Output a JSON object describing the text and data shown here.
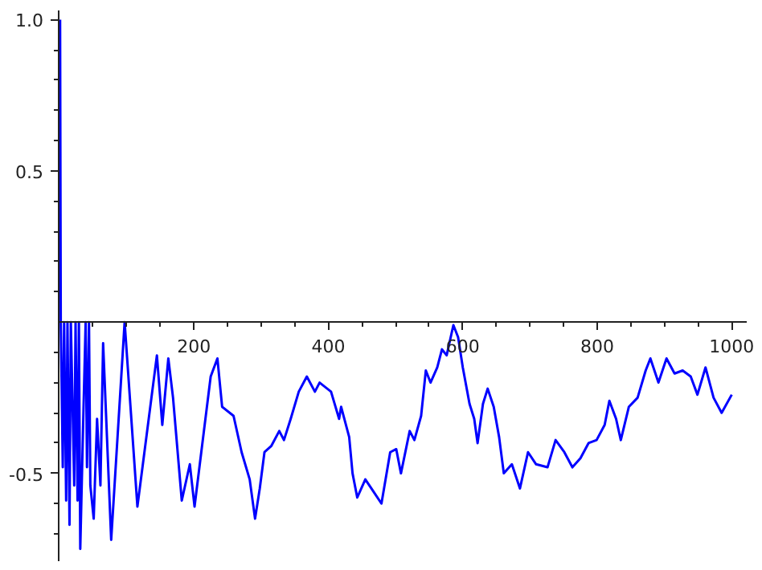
{
  "chart_data": {
    "type": "line",
    "line_style": "solid",
    "marker": "none",
    "grid": false,
    "xlim": [
      0,
      1022
    ],
    "ylim": [
      -0.79,
      1.03
    ],
    "xticks": [
      {
        "value": 50,
        "label": null
      },
      {
        "value": 100,
        "label": null
      },
      {
        "value": 150,
        "label": null
      },
      200,
      {
        "value": 250,
        "label": null
      },
      {
        "value": 300,
        "label": null
      },
      {
        "value": 350,
        "label": null
      },
      400,
      {
        "value": 450,
        "label": null
      },
      {
        "value": 500,
        "label": null
      },
      {
        "value": 550,
        "label": null
      },
      600,
      {
        "value": 650,
        "label": null
      },
      {
        "value": 700,
        "label": null
      },
      {
        "value": 750,
        "label": null
      },
      800,
      {
        "value": 850,
        "label": null
      },
      {
        "value": 900,
        "label": null
      },
      {
        "value": 950,
        "label": null
      },
      1000
    ],
    "yticks": [
      {
        "value": -0.7,
        "label": null
      },
      {
        "value": -0.6,
        "label": null
      },
      -0.5,
      {
        "value": -0.4,
        "label": null
      },
      {
        "value": -0.3,
        "label": null
      },
      {
        "value": -0.2,
        "label": null
      },
      {
        "value": -0.1,
        "label": null
      },
      {
        "value": 0.1,
        "label": null
      },
      {
        "value": 0.2,
        "label": null
      },
      {
        "value": 0.3,
        "label": null
      },
      {
        "value": 0.4,
        "label": null
      },
      0.5,
      {
        "value": 0.6,
        "label": null
      },
      {
        "value": 0.7,
        "label": null
      },
      {
        "value": 0.8,
        "label": null
      },
      {
        "value": 0.9,
        "label": null
      },
      {
        "value": 1,
        "label": "1.0"
      }
    ],
    "series": [
      {
        "color": "#0000ff",
        "x": [
          1,
          2,
          5,
          7,
          10,
          12,
          15,
          17,
          22,
          24,
          27,
          29,
          31,
          36,
          39,
          41,
          44,
          46,
          51,
          56,
          61,
          65,
          77,
          97,
          116,
          145,
          153,
          162,
          169,
          182,
          194,
          201,
          211,
          225,
          235,
          242,
          259,
          271,
          283,
          291,
          298,
          305,
          315,
          327,
          334,
          344,
          356,
          368,
          380,
          387,
          404,
          416,
          419,
          431,
          436,
          443,
          455,
          467,
          479,
          492,
          501,
          508,
          521,
          528,
          538,
          545,
          552,
          562,
          569,
          576,
          586,
          593,
          600,
          610,
          617,
          622,
          630,
          637,
          646,
          654,
          661,
          673,
          685,
          697,
          709,
          726,
          738,
          751,
          763,
          775,
          787,
          799,
          811,
          818,
          828,
          835,
          847,
          860,
          872,
          879,
          891,
          903,
          915,
          927,
          939,
          949,
          961,
          973,
          985,
          1000
        ],
        "values": [
          1.0,
          0,
          -0.48,
          0,
          -0.59,
          0,
          -0.67,
          0,
          -0.54,
          0,
          -0.59,
          0,
          -0.75,
          -0.27,
          0,
          -0.48,
          0,
          -0.54,
          -0.65,
          -0.32,
          -0.54,
          -0.07,
          -0.72,
          0,
          -0.61,
          -0.11,
          -0.34,
          -0.12,
          -0.25,
          -0.59,
          -0.47,
          -0.61,
          -0.43,
          -0.18,
          -0.12,
          -0.28,
          -0.31,
          -0.43,
          -0.52,
          -0.65,
          -0.55,
          -0.43,
          -0.41,
          -0.36,
          -0.39,
          -0.32,
          -0.23,
          -0.18,
          -0.23,
          -0.2,
          -0.23,
          -0.32,
          -0.28,
          -0.38,
          -0.5,
          -0.58,
          -0.52,
          -0.56,
          -0.6,
          -0.43,
          -0.42,
          -0.5,
          -0.36,
          -0.39,
          -0.31,
          -0.16,
          -0.2,
          -0.15,
          -0.09,
          -0.11,
          -0.01,
          -0.05,
          -0.15,
          -0.27,
          -0.32,
          -0.4,
          -0.27,
          -0.22,
          -0.28,
          -0.38,
          -0.5,
          -0.47,
          -0.55,
          -0.43,
          -0.47,
          -0.48,
          -0.39,
          -0.43,
          -0.48,
          -0.45,
          -0.4,
          -0.39,
          -0.34,
          -0.26,
          -0.32,
          -0.39,
          -0.28,
          -0.25,
          -0.16,
          -0.12,
          -0.2,
          -0.12,
          -0.17,
          -0.16,
          -0.18,
          -0.24,
          -0.15,
          -0.25,
          -0.3,
          -0.24
        ]
      }
    ]
  }
}
